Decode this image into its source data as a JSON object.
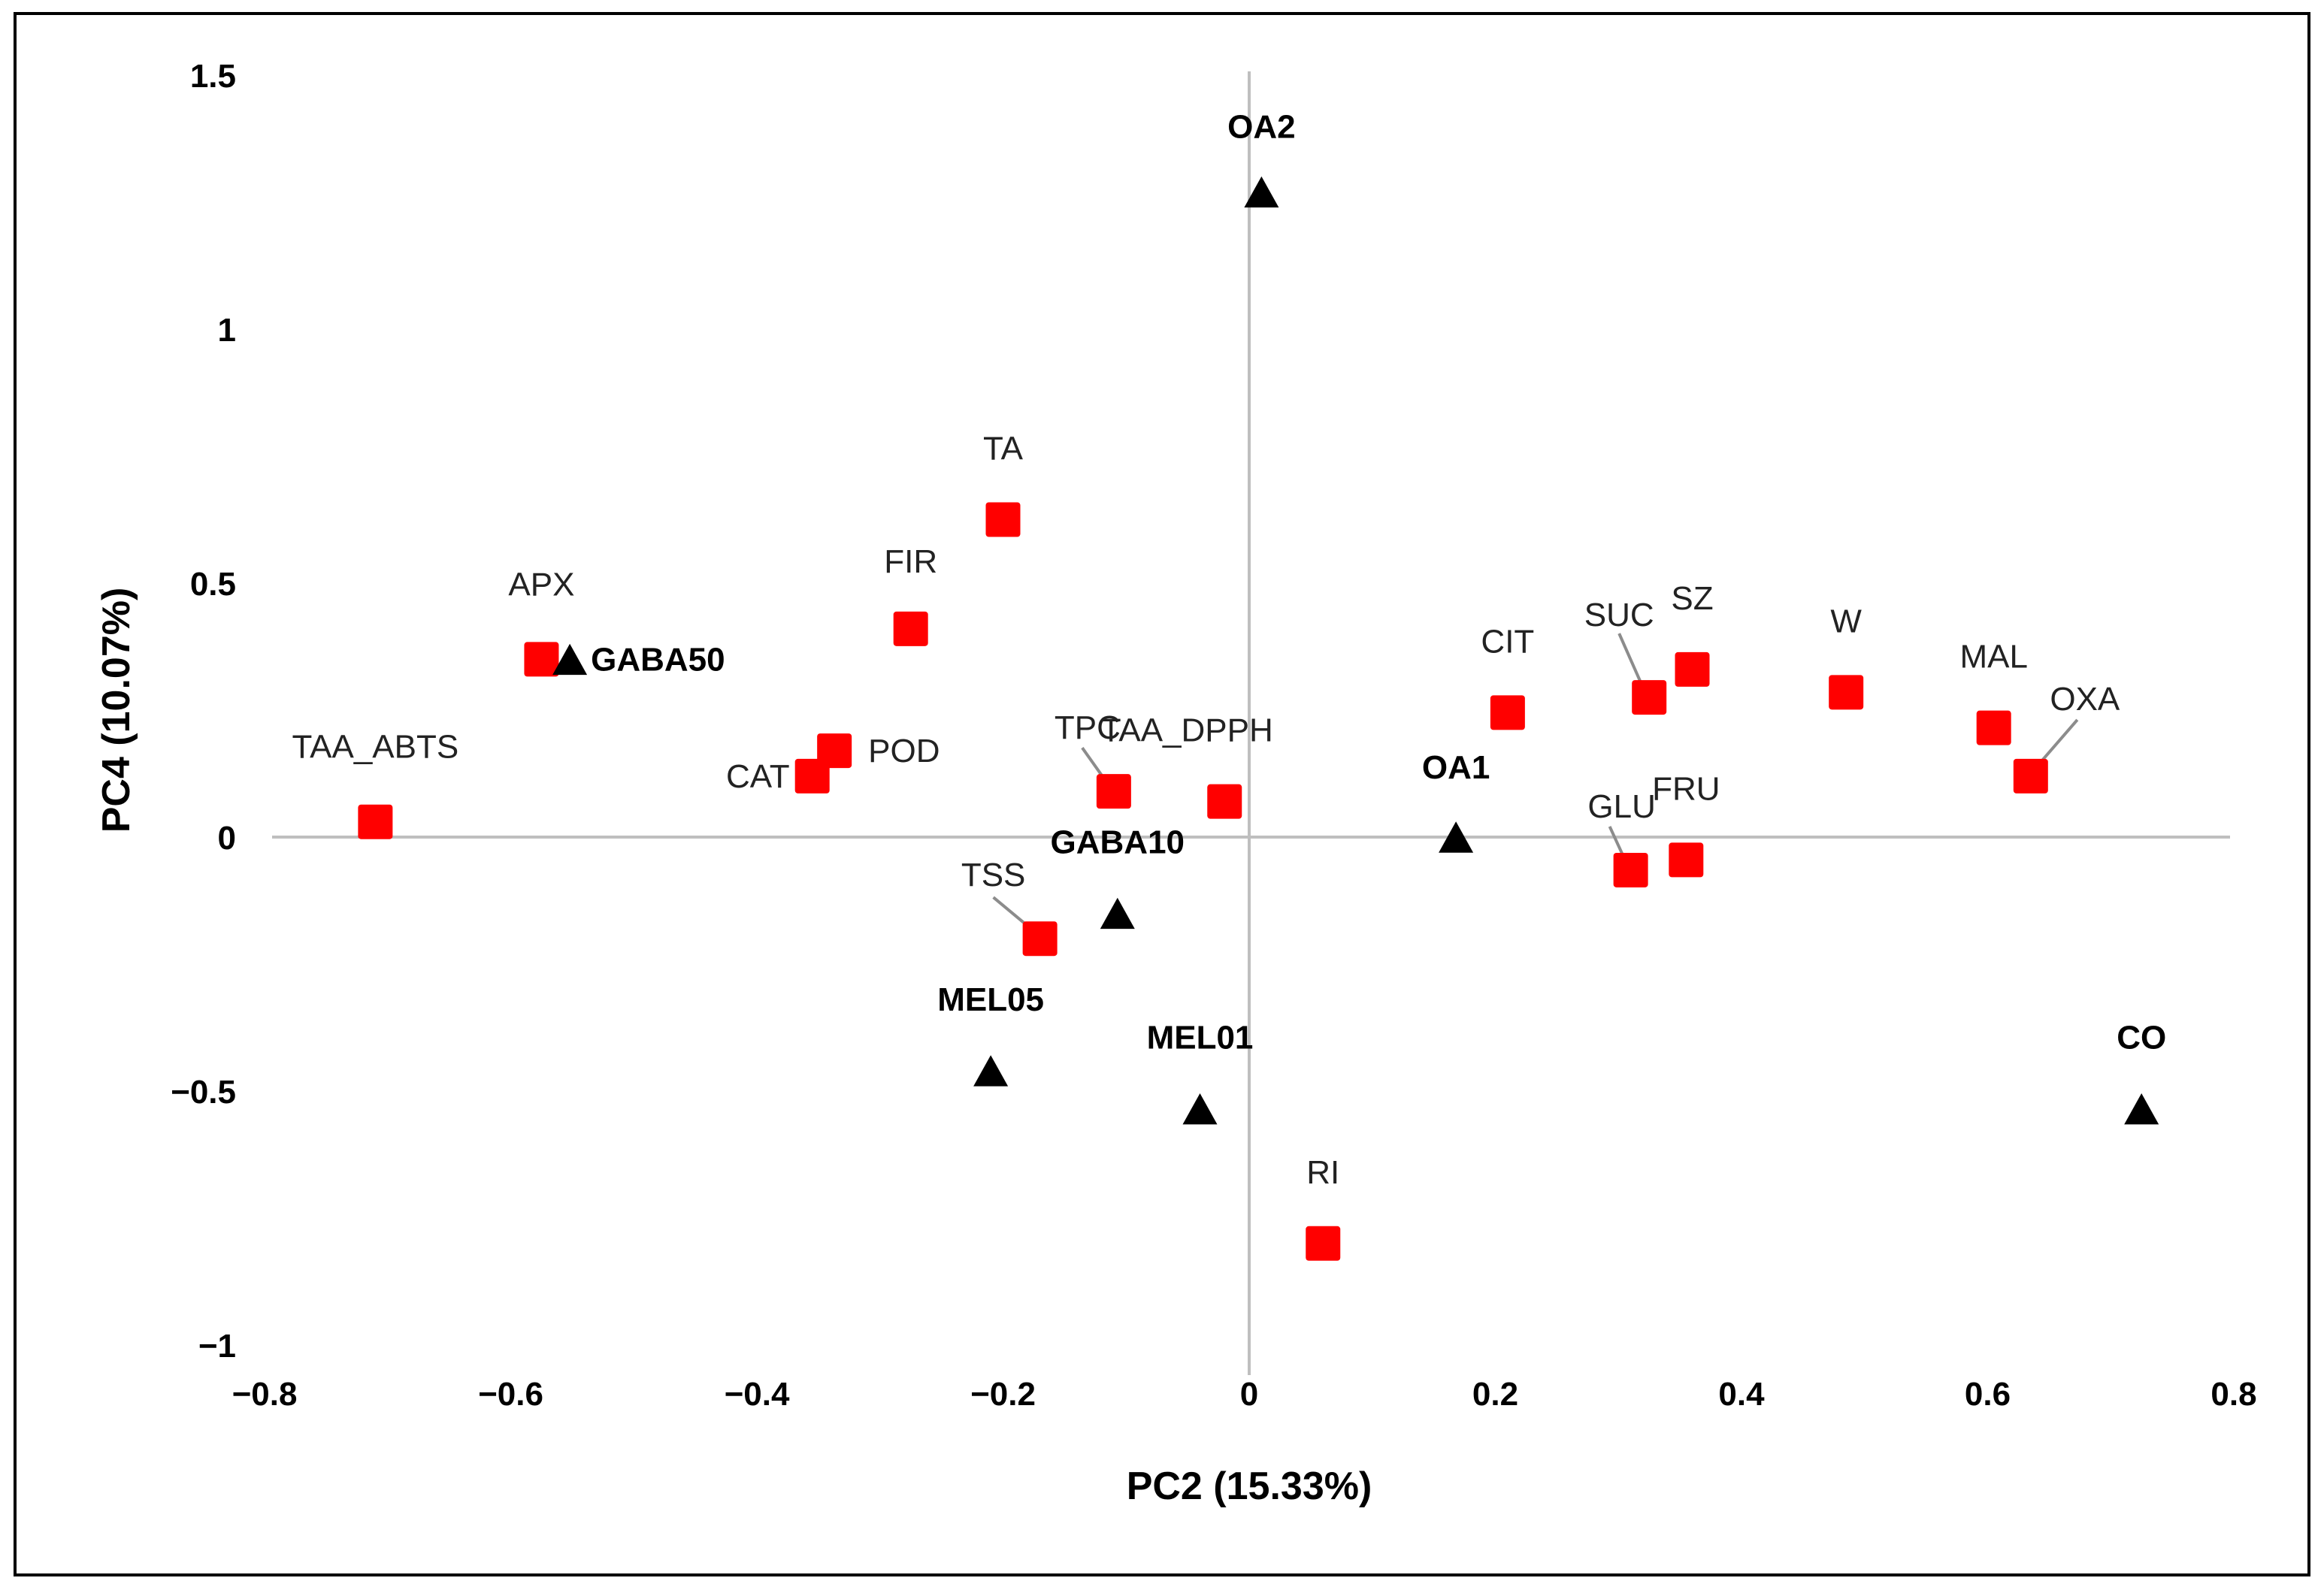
{
  "chart_data": {
    "type": "scatter",
    "xlabel": "PC2 (15.33%)",
    "ylabel": "PC4 (10.07%)",
    "xlim": [
      -0.8,
      0.8
    ],
    "ylim": [
      -1,
      1.5
    ],
    "x_ticks": [
      "−0.8",
      "−0.6",
      "−0.4",
      "−0.2",
      "0",
      "0.2",
      "0.4",
      "0.6",
      "0.8"
    ],
    "y_ticks": [
      "1.5",
      "1",
      "0.5",
      "0",
      "−0.5",
      "−1"
    ],
    "grid": false,
    "colors": {
      "variables": "#ff0000",
      "treatments": "#000000",
      "axes": "#bfbfbf",
      "leader": "#8c8c8c"
    },
    "series": [
      {
        "marker": "square",
        "color": "#ff0000",
        "points": [
          {
            "label": "TAA_ABTS",
            "x": -0.71,
            "y": 0.03
          },
          {
            "label": "APX",
            "x": -0.575,
            "y": 0.35
          },
          {
            "label": "CAT",
            "x": -0.355,
            "y": 0.12
          },
          {
            "label": "POD",
            "x": -0.337,
            "y": 0.17
          },
          {
            "label": "FIR",
            "x": -0.275,
            "y": 0.41
          },
          {
            "label": "TA",
            "x": -0.2,
            "y": 0.625
          },
          {
            "label": "TPC",
            "x": -0.11,
            "y": 0.09
          },
          {
            "label": "TAA_DPPH",
            "x": -0.02,
            "y": 0.07
          },
          {
            "label": "TSS",
            "x": -0.17,
            "y": -0.2
          },
          {
            "label": "RI",
            "x": 0.06,
            "y": -0.8
          },
          {
            "label": "CIT",
            "x": 0.21,
            "y": 0.245
          },
          {
            "label": "SUC",
            "x": 0.325,
            "y": 0.275
          },
          {
            "label": "SZ",
            "x": 0.36,
            "y": 0.33
          },
          {
            "label": "GLU",
            "x": 0.31,
            "y": -0.065
          },
          {
            "label": "FRU",
            "x": 0.355,
            "y": -0.045
          },
          {
            "label": "W",
            "x": 0.485,
            "y": 0.285
          },
          {
            "label": "MAL",
            "x": 0.605,
            "y": 0.215
          },
          {
            "label": "OXA",
            "x": 0.635,
            "y": 0.12
          }
        ]
      },
      {
        "marker": "triangle",
        "color": "#000000",
        "points": [
          {
            "label": "OA2",
            "x": 0.01,
            "y": 1.27
          },
          {
            "label": "GABA50",
            "x": -0.552,
            "y": 0.35
          },
          {
            "label": "OA1",
            "x": 0.168,
            "y": 0
          },
          {
            "label": "GABA10",
            "x": -0.107,
            "y": -0.15
          },
          {
            "label": "MEL05",
            "x": -0.21,
            "y": -0.46
          },
          {
            "label": "MEL01",
            "x": -0.04,
            "y": -0.535
          },
          {
            "label": "CO",
            "x": 0.725,
            "y": -0.535
          }
        ]
      }
    ]
  }
}
